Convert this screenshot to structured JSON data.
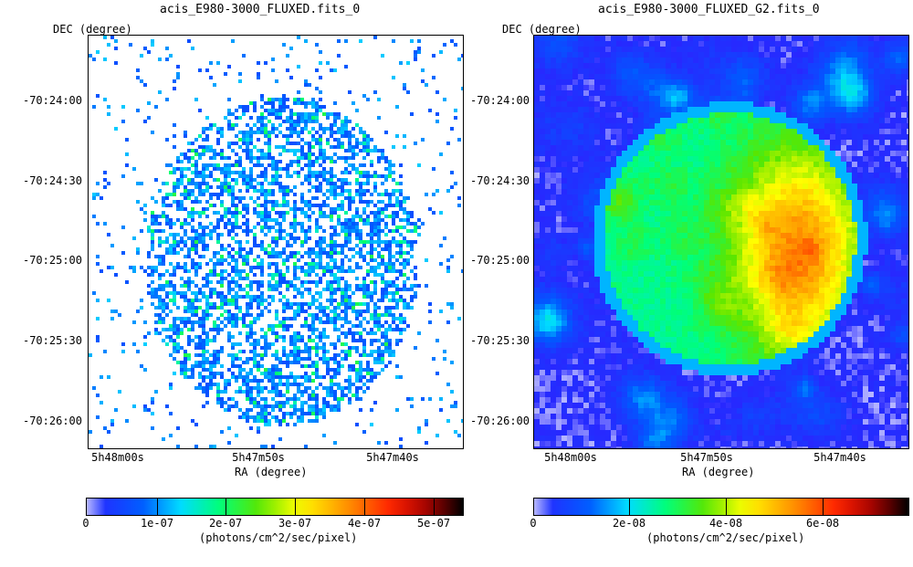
{
  "chart_data": [
    {
      "type": "heatmap",
      "title": "acis_E980-3000_FLUXED.fits_0",
      "xlabel": "RA (degree)",
      "ylabel": "DEC (degree)",
      "x_ticks": [
        "5h48m00s",
        "5h47m50s",
        "5h47m40s"
      ],
      "y_ticks": [
        "-70:24:00",
        "-70:24:30",
        "-70:25:00",
        "-70:25:30",
        "-70:26:00"
      ],
      "colorbar": {
        "label": "(photons/cm^2/sec/pixel)",
        "ticks": [
          "0",
          "1e-07",
          "2e-07",
          "3e-07",
          "4e-07",
          "5e-07"
        ],
        "range": [
          0,
          5.5e-07
        ]
      },
      "colors": [
        "#ffffff",
        "#0000ff",
        "#00ffff",
        "#00ff00",
        "#ffff00",
        "#ff8000",
        "#ff0000",
        "#000000"
      ]
    },
    {
      "type": "heatmap",
      "title": "acis_E980-3000_FLUXED_G2.fits_0",
      "xlabel": "RA (degree)",
      "ylabel": "DEC (degree)",
      "x_ticks": [
        "5h48m00s",
        "5h47m50s",
        "5h47m40s"
      ],
      "y_ticks": [
        "-70:24:00",
        "-70:24:30",
        "-70:25:00",
        "-70:25:30",
        "-70:26:00"
      ],
      "colorbar": {
        "label": "(photons/cm^2/sec/pixel)",
        "ticks": [
          "0",
          "2e-08",
          "4e-08",
          "6e-08"
        ],
        "range": [
          0,
          7.8e-08
        ]
      },
      "colors": [
        "#ffffff",
        "#0000ff",
        "#00ffff",
        "#00ff00",
        "#ffff00",
        "#ff8000",
        "#ff0000",
        "#000000"
      ]
    }
  ]
}
